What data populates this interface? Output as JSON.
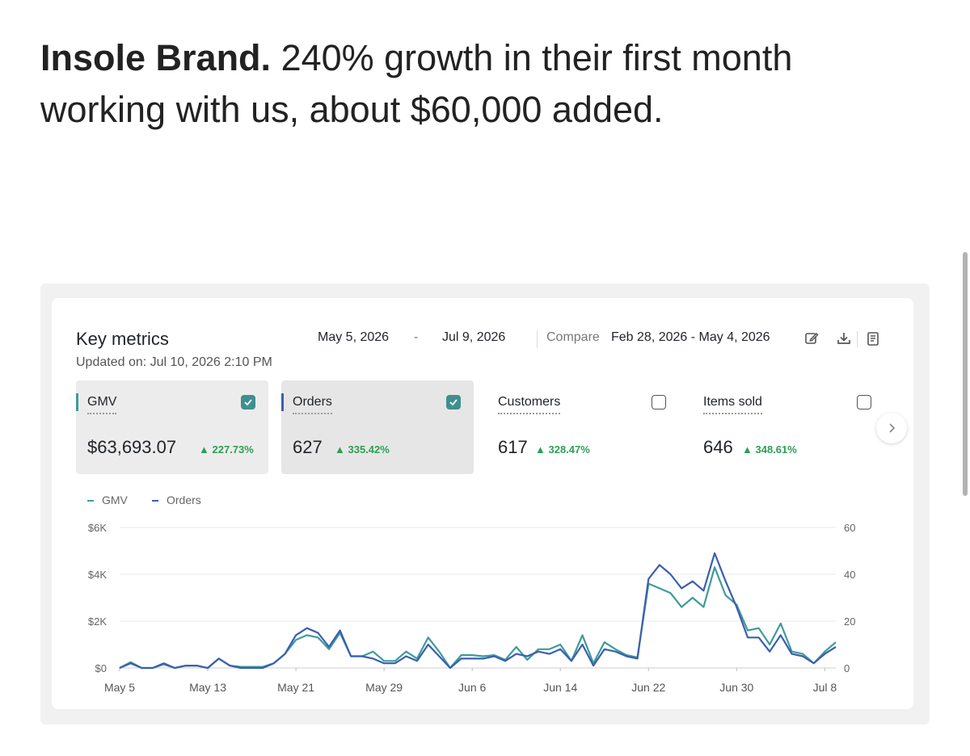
{
  "headline": {
    "brand": "Insole Brand.",
    "text": " 240% growth in their first month working with us, about $60,000 added."
  },
  "key_metrics": {
    "title": "Key metrics",
    "updated": "Updated on: Jul 10, 2026 2:10 PM",
    "date_start": "May 5, 2026",
    "date_separator": "-",
    "date_end": "Jul 9, 2026",
    "compare_label": "Compare",
    "compare_range": "Feb 28, 2026 - May 4, 2026",
    "icons": [
      "edit-icon",
      "download-icon",
      "report-icon"
    ]
  },
  "cards": [
    {
      "label": "GMV",
      "value": "$63,693.07",
      "delta": "227.73%",
      "checked": true
    },
    {
      "label": "Orders",
      "value": "627",
      "delta": "335.42%",
      "checked": true
    },
    {
      "label": "Customers",
      "value": "617",
      "delta": "328.47%",
      "checked": false
    },
    {
      "label": "Items sold",
      "value": "646",
      "delta": "348.61%",
      "checked": false
    }
  ],
  "colors": {
    "gmv": "#3f9b9b",
    "orders": "#3a5fb0",
    "positive": "#2e9e54"
  },
  "chart_data": {
    "type": "line",
    "x_tick_labels": [
      "May 5",
      "May 13",
      "May 21",
      "May 29",
      "Jun 6",
      "Jun 14",
      "Jun 22",
      "Jun 30",
      "Jul 8"
    ],
    "y_left_ticks": [
      "$0",
      "$2K",
      "$4K",
      "$6K"
    ],
    "y_right_ticks": [
      "0",
      "20",
      "40",
      "60"
    ],
    "y_left_range": [
      0,
      6000
    ],
    "y_right_range": [
      0,
      60
    ],
    "grid": true,
    "legend_position": "top-left",
    "series": [
      {
        "name": "GMV",
        "axis": "left",
        "color": "#3f9b9b",
        "values": [
          0,
          250,
          0,
          0,
          150,
          0,
          100,
          100,
          0,
          400,
          100,
          50,
          50,
          50,
          200,
          600,
          1200,
          1400,
          1300,
          800,
          1500,
          500,
          500,
          700,
          300,
          300,
          700,
          400,
          1300,
          700,
          0,
          550,
          550,
          500,
          550,
          350,
          900,
          350,
          800,
          800,
          1000,
          300,
          1400,
          200,
          1100,
          800,
          550,
          450,
          3600,
          3400,
          3200,
          2600,
          3000,
          2600,
          4300,
          3100,
          2700,
          1600,
          1700,
          1000,
          1900,
          700,
          600,
          200,
          700,
          1100
        ]
      },
      {
        "name": "Orders",
        "axis": "right",
        "color": "#3a5fb0",
        "values": [
          0,
          2,
          0,
          0,
          2,
          0,
          1,
          1,
          0,
          4,
          1,
          0,
          0,
          0,
          2,
          6,
          14,
          17,
          15,
          9,
          16,
          5,
          5,
          4,
          2,
          2,
          5,
          3,
          10,
          5,
          0,
          4,
          4,
          4,
          5,
          3,
          6,
          5,
          7,
          6,
          8,
          3,
          10,
          1,
          8,
          7,
          5,
          4,
          38,
          44,
          40,
          34,
          37,
          33,
          49,
          37,
          26,
          13,
          13,
          7,
          14,
          6,
          5,
          2,
          6,
          9
        ]
      }
    ]
  }
}
